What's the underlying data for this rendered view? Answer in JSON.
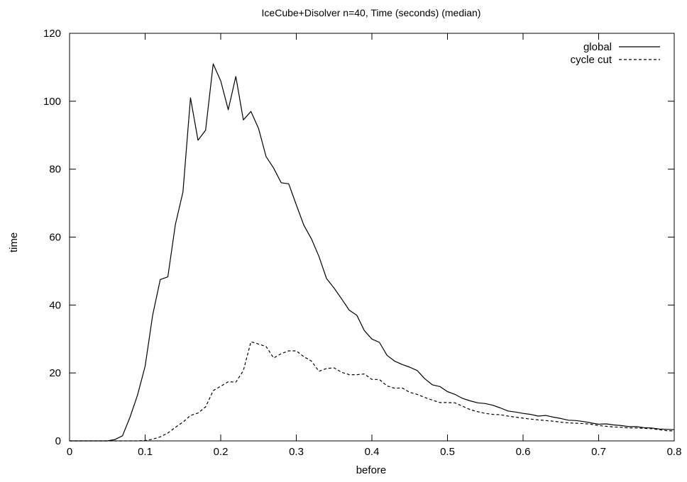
{
  "chart_data": {
    "type": "line",
    "title": "IceCube+Disolver n=40, Time (seconds) (median)",
    "xlabel": "before",
    "ylabel": "time",
    "xlim": [
      0,
      0.8
    ],
    "ylim": [
      0,
      120
    ],
    "xticks": [
      0,
      0.1,
      0.2,
      0.3,
      0.4,
      0.5,
      0.6,
      0.7,
      0.8
    ],
    "xtick_labels": [
      "0",
      "0.1",
      "0.2",
      "0.3",
      "0.4",
      "0.5",
      "0.6",
      "0.7",
      "0.8"
    ],
    "yticks": [
      0,
      20,
      40,
      60,
      80,
      100,
      120
    ],
    "ytick_labels": [
      "0",
      "20",
      "40",
      "60",
      "80",
      "100",
      "120"
    ],
    "grid": false,
    "legend_position": "top-right",
    "x": [
      0.0,
      0.01,
      0.02,
      0.03,
      0.04,
      0.05,
      0.06,
      0.07,
      0.08,
      0.09,
      0.1,
      0.11,
      0.12,
      0.13,
      0.14,
      0.15,
      0.16,
      0.17,
      0.18,
      0.19,
      0.2,
      0.21,
      0.22,
      0.23,
      0.24,
      0.25,
      0.26,
      0.27,
      0.28,
      0.29,
      0.3,
      0.31,
      0.32,
      0.33,
      0.34,
      0.35,
      0.36,
      0.37,
      0.38,
      0.39,
      0.4,
      0.41,
      0.42,
      0.43,
      0.44,
      0.45,
      0.46,
      0.47,
      0.48,
      0.49,
      0.5,
      0.51,
      0.52,
      0.53,
      0.54,
      0.55,
      0.56,
      0.57,
      0.58,
      0.59,
      0.6,
      0.61,
      0.62,
      0.63,
      0.64,
      0.65,
      0.66,
      0.67,
      0.68,
      0.69,
      0.7,
      0.71,
      0.72,
      0.73,
      0.74,
      0.75,
      0.76,
      0.77,
      0.78,
      0.79,
      0.8
    ],
    "series": [
      {
        "name": "global",
        "style": "solid",
        "values": [
          0,
          0,
          0,
          0,
          0,
          0,
          0.4,
          1.5,
          7,
          13.5,
          22,
          37,
          47.5,
          48.3,
          63.7,
          73.3,
          101,
          88.5,
          91.5,
          111,
          106,
          97.5,
          107.3,
          94.5,
          97,
          92,
          83.7,
          80.3,
          76,
          75.7,
          69.5,
          63.5,
          59.5,
          54.3,
          47.8,
          45,
          41.8,
          38.5,
          37,
          32.5,
          30,
          29,
          25.2,
          23.5,
          22.5,
          21.7,
          20.7,
          18.3,
          16.5,
          16,
          14.5,
          13.7,
          12.5,
          11.8,
          11.2,
          11,
          10.5,
          9.7,
          8.8,
          8.5,
          8.1,
          7.8,
          7.3,
          7.5,
          7,
          6.6,
          6.1,
          6,
          5.7,
          5.3,
          4.9,
          5,
          4.7,
          4.5,
          4.2,
          4.2,
          3.9,
          3.8,
          3.5,
          3.4,
          3.3
        ]
      },
      {
        "name": "cycle cut",
        "style": "dashed",
        "values": [
          0,
          0,
          0,
          0,
          0,
          0,
          0,
          0,
          0,
          0,
          0.1,
          0.5,
          1.2,
          2.3,
          4,
          5.5,
          7.5,
          8.2,
          10,
          14.8,
          16.1,
          17.4,
          17.3,
          20.7,
          29.2,
          28.5,
          27.8,
          24.4,
          25.7,
          26.5,
          26.5,
          24.8,
          23.5,
          20.5,
          21.3,
          21.5,
          20.2,
          19.5,
          19.5,
          19.7,
          18.1,
          18.1,
          16.2,
          15.5,
          15.6,
          14.3,
          13.7,
          12.8,
          12,
          11.3,
          11.3,
          11.2,
          10.2,
          9.2,
          8.6,
          8.1,
          7.8,
          7.7,
          7.3,
          7,
          6.7,
          6.4,
          6.2,
          6,
          5.8,
          5.5,
          5.3,
          5.2,
          5.1,
          4.9,
          4.5,
          4.3,
          4.1,
          4,
          3.8,
          3.8,
          3.7,
          3.6,
          3.3,
          3,
          2.9
        ]
      }
    ]
  }
}
